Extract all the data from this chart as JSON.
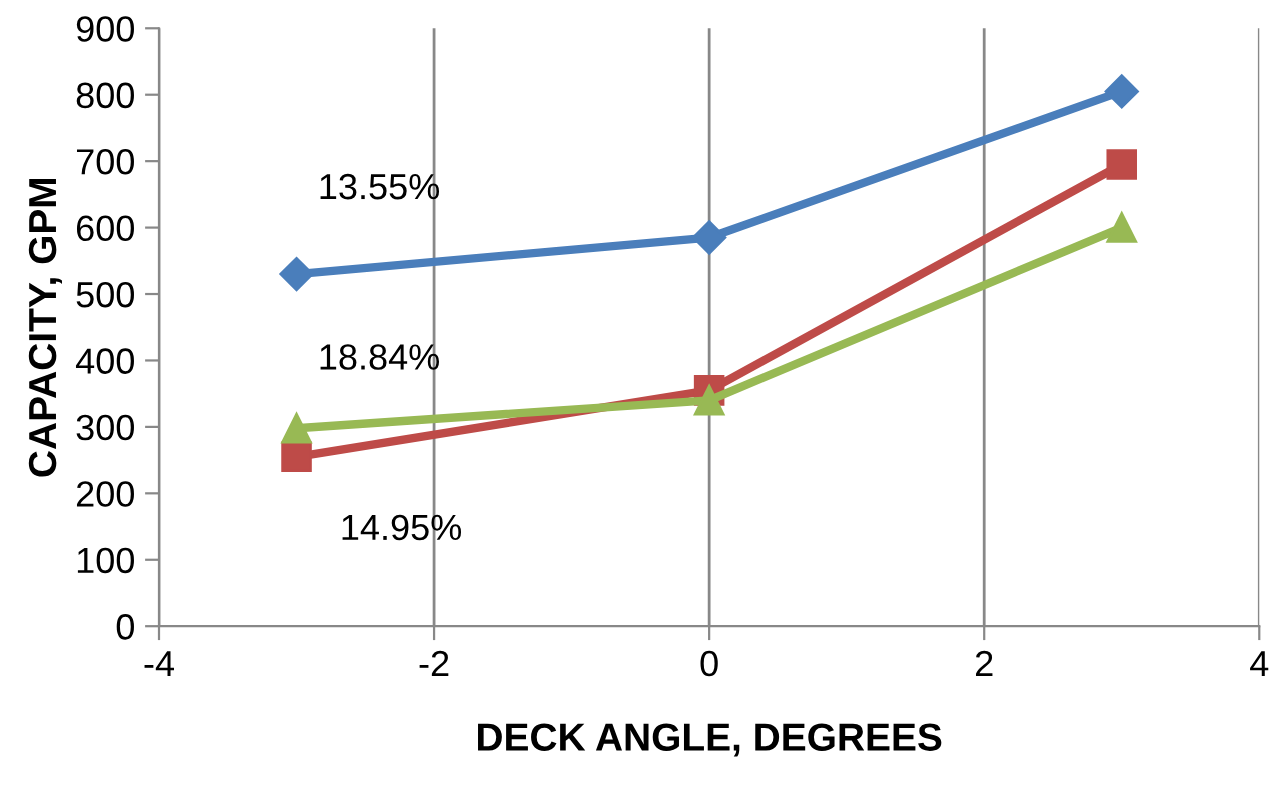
{
  "chart_data": {
    "type": "line",
    "xlabel": "DECK ANGLE, DEGREES",
    "ylabel": "CAPACITY, GPM",
    "x": [
      -3,
      0,
      3
    ],
    "series": [
      {
        "color": "#4a7ebb",
        "marker": "diamond",
        "values": [
          530,
          585,
          805
        ]
      },
      {
        "color": "#be4b48",
        "marker": "square",
        "values": [
          255,
          355,
          695
        ]
      },
      {
        "color": "#98b954",
        "marker": "triangle",
        "values": [
          298,
          340,
          600
        ]
      }
    ],
    "xlim": [
      -4,
      4
    ],
    "xticks": [
      -4,
      -2,
      0,
      2,
      4
    ],
    "ylim": [
      0,
      900
    ],
    "yticks": [
      0,
      100,
      200,
      300,
      400,
      500,
      600,
      700,
      800,
      900
    ],
    "grid": "x",
    "line_style": "solid",
    "annotations": [
      "13.55%",
      "18.84%",
      "14.95%"
    ]
  }
}
